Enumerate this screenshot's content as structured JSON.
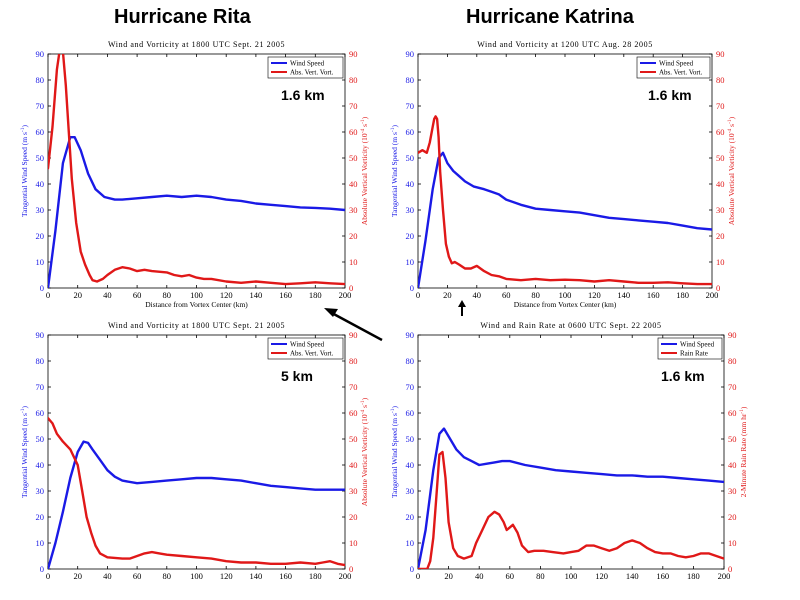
{
  "headings": {
    "left": "Hurricane Rita",
    "right": "Hurricane Katrina"
  },
  "colors": {
    "blue": "#1a1ae6",
    "red": "#e01818",
    "axis": "#000000"
  },
  "chart_data": [
    {
      "id": "rita-1p6",
      "type": "line",
      "title": "Wind and Vorticity at 1800 UTC Sept. 21 2005",
      "xlabel": "Distance from Vortex Center (km)",
      "ylabel": "Tangential Wind Speed (m s",
      "ylabel_sup": "-1",
      "y2label": "Absolute Vertical Vorticity (10",
      "y2label_sup": "-4",
      "y2label_tail": " s",
      "y2label_sup2": "-1",
      "y2label_end": ")",
      "xlim": [
        0,
        200
      ],
      "ylim": [
        0,
        90
      ],
      "y2lim": [
        0,
        90
      ],
      "xticks": [
        0,
        20,
        40,
        60,
        80,
        100,
        120,
        140,
        160,
        180,
        200
      ],
      "yticks": [
        0,
        10,
        20,
        30,
        40,
        50,
        60,
        70,
        80,
        90
      ],
      "annotation": "1.6 km",
      "legend": [
        "Wind Speed",
        "Abs. Vert. Vort."
      ],
      "series": [
        {
          "name": "Wind Speed",
          "axis": "left",
          "color": "#1a1ae6",
          "x": [
            0,
            5,
            10,
            15,
            18,
            22,
            27,
            32,
            38,
            45,
            50,
            60,
            70,
            80,
            90,
            100,
            110,
            120,
            130,
            140,
            150,
            160,
            170,
            180,
            190,
            200
          ],
          "y": [
            0,
            22,
            48,
            58,
            58,
            53,
            44,
            38,
            35,
            34,
            34,
            34.5,
            35,
            35.5,
            35,
            35.5,
            35,
            34,
            33.5,
            32.5,
            32,
            31.5,
            31,
            30.8,
            30.5,
            30
          ]
        },
        {
          "name": "Abs. Vert. Vort.",
          "axis": "right",
          "color": "#e01818",
          "x": [
            0,
            3,
            6,
            8,
            10,
            12,
            14,
            16,
            19,
            22,
            25,
            28,
            30,
            33,
            37,
            40,
            45,
            50,
            55,
            60,
            65,
            70,
            80,
            85,
            90,
            95,
            100,
            105,
            110,
            120,
            130,
            140,
            150,
            160,
            170,
            180,
            190,
            200
          ],
          "y": [
            46,
            62,
            84,
            92,
            91,
            78,
            60,
            42,
            25,
            14,
            9,
            5,
            3,
            2.5,
            3.5,
            5,
            7,
            8,
            7.5,
            6.5,
            7,
            6.5,
            6,
            5,
            4.5,
            5,
            4,
            3.5,
            3.5,
            2.5,
            2,
            2.5,
            2,
            1.5,
            1.8,
            2.2,
            1.8,
            1.5
          ]
        }
      ]
    },
    {
      "id": "katrina-1p6",
      "type": "line",
      "title": "Wind and Vorticity at 1200 UTC Aug. 28 2005",
      "xlabel": "Distance from Vortex Center (km)",
      "ylabel": "Tangential Wind Speed (m s",
      "ylabel_sup": "-1",
      "y2label": "Absolute Vertical Vorticity (10",
      "y2label_sup": "-4",
      "y2label_tail": " s",
      "y2label_sup2": "-1",
      "y2label_end": ")",
      "xlim": [
        0,
        200
      ],
      "ylim": [
        0,
        90
      ],
      "y2lim": [
        0,
        90
      ],
      "xticks": [
        0,
        20,
        40,
        60,
        80,
        100,
        120,
        140,
        160,
        180,
        200
      ],
      "yticks": [
        0,
        10,
        20,
        30,
        40,
        50,
        60,
        70,
        80,
        90
      ],
      "annotation": "1.6 km",
      "legend": [
        "Wind Speed",
        "Abs. Vert. Vort."
      ],
      "series": [
        {
          "name": "Wind Speed",
          "axis": "left",
          "color": "#1a1ae6",
          "x": [
            0,
            5,
            10,
            14,
            17,
            20,
            24,
            28,
            32,
            38,
            45,
            50,
            55,
            60,
            70,
            80,
            90,
            100,
            110,
            120,
            130,
            140,
            150,
            160,
            170,
            180,
            190,
            200
          ],
          "y": [
            0,
            18,
            38,
            50,
            52,
            48,
            45,
            43,
            41,
            39,
            38,
            37,
            36,
            34,
            32,
            30.5,
            30,
            29.5,
            29,
            28,
            27,
            26.5,
            26,
            25.5,
            25,
            24,
            23,
            22.5
          ]
        },
        {
          "name": "Abs. Vert. Vort.",
          "axis": "right",
          "color": "#e01818",
          "x": [
            0,
            3,
            6,
            8,
            10,
            11,
            12,
            13,
            14,
            15,
            17,
            19,
            21,
            23,
            25,
            28,
            32,
            36,
            40,
            45,
            50,
            55,
            60,
            70,
            80,
            90,
            100,
            110,
            120,
            130,
            140,
            150,
            160,
            170,
            180,
            190,
            200
          ],
          "y": [
            52,
            53,
            52,
            56,
            62,
            65,
            66,
            65,
            58,
            45,
            30,
            17,
            12,
            9.5,
            10,
            9,
            7.5,
            7.5,
            8.5,
            6.5,
            5,
            4.5,
            3.5,
            3,
            3.5,
            3,
            3.2,
            3,
            2.5,
            3,
            2.5,
            2,
            2,
            2.2,
            1.8,
            1.5,
            1.5
          ]
        }
      ]
    },
    {
      "id": "rita-5",
      "type": "line",
      "title": "Wind and Vorticity at 1800 UTC Sept. 21 2005",
      "xlabel": "",
      "ylabel": "Tangential Wind Speed (m s",
      "ylabel_sup": "-1",
      "y2label": "Absolute Vertical Vorticity (10",
      "y2label_sup": "-4",
      "y2label_tail": " s",
      "y2label_sup2": "-1",
      "y2label_end": ")",
      "xlim": [
        0,
        200
      ],
      "ylim": [
        0,
        90
      ],
      "y2lim": [
        0,
        90
      ],
      "xticks": [
        0,
        20,
        40,
        60,
        80,
        100,
        120,
        140,
        160,
        180,
        200
      ],
      "yticks": [
        0,
        10,
        20,
        30,
        40,
        50,
        60,
        70,
        80,
        90
      ],
      "annotation": "5 km",
      "legend": [
        "Wind Speed",
        "Abs. Vert. Vort."
      ],
      "series": [
        {
          "name": "Wind Speed",
          "axis": "left",
          "color": "#1a1ae6",
          "x": [
            0,
            5,
            10,
            15,
            20,
            24,
            27,
            30,
            35,
            40,
            45,
            50,
            60,
            70,
            80,
            90,
            100,
            110,
            120,
            130,
            140,
            150,
            160,
            170,
            180,
            190,
            200
          ],
          "y": [
            0,
            10,
            22,
            35,
            45,
            49,
            48.5,
            46,
            42,
            38,
            35.5,
            34,
            33,
            33.5,
            34,
            34.5,
            35,
            35,
            34.5,
            34,
            33,
            32,
            31.5,
            31,
            30.5,
            30.5,
            30.5
          ]
        },
        {
          "name": "Abs. Vert. Vort.",
          "axis": "right",
          "color": "#e01818",
          "x": [
            0,
            3,
            6,
            10,
            15,
            20,
            23,
            26,
            29,
            32,
            35,
            40,
            50,
            55,
            60,
            65,
            70,
            75,
            80,
            90,
            100,
            110,
            120,
            130,
            140,
            150,
            160,
            170,
            180,
            185,
            190,
            195,
            200
          ],
          "y": [
            58,
            56,
            52,
            49,
            46,
            40,
            30,
            20,
            14,
            9,
            6,
            4.5,
            4,
            4,
            5,
            6,
            6.5,
            6,
            5.5,
            5,
            4.5,
            4,
            3,
            2.5,
            2.5,
            2,
            2,
            2.5,
            2,
            2.5,
            3,
            2,
            1.5
          ]
        }
      ]
    },
    {
      "id": "katrina-rain",
      "type": "line",
      "title": "Wind and Rain Rate at 0600 UTC Sept. 22 2005",
      "xlabel": "",
      "ylabel": "Tangential Wind Speed (m s",
      "ylabel_sup": "-1",
      "y2label": "2-Minute Rain Rate (mm hr",
      "y2label_sup": "-1",
      "y2label_tail": "",
      "y2label_sup2": "",
      "y2label_end": ")",
      "xlim": [
        0,
        200
      ],
      "ylim": [
        0,
        90
      ],
      "y2lim": [
        0,
        90
      ],
      "xticks": [
        0,
        20,
        40,
        60,
        80,
        100,
        120,
        140,
        160,
        180,
        200
      ],
      "yticks": [
        0,
        10,
        20,
        30,
        40,
        50,
        60,
        70,
        80,
        90
      ],
      "annotation": "1.6 km",
      "legend": [
        "Wind Speed",
        "Rain Rate"
      ],
      "series": [
        {
          "name": "Wind Speed",
          "axis": "left",
          "color": "#1a1ae6",
          "x": [
            0,
            5,
            10,
            14,
            17,
            20,
            25,
            30,
            35,
            40,
            45,
            50,
            55,
            60,
            70,
            80,
            90,
            100,
            110,
            120,
            130,
            140,
            150,
            160,
            170,
            180,
            190,
            200
          ],
          "y": [
            0,
            15,
            38,
            52,
            54,
            51,
            46,
            43,
            41.5,
            40,
            40.5,
            41,
            41.5,
            41.5,
            40,
            39,
            38,
            37.5,
            37,
            36.5,
            36,
            36,
            35.5,
            35.5,
            35,
            34.5,
            34,
            33.5
          ]
        },
        {
          "name": "Rain Rate",
          "axis": "right",
          "color": "#e01818",
          "x": [
            0,
            3,
            6,
            8,
            10,
            12,
            14,
            16,
            18,
            20,
            23,
            26,
            30,
            35,
            38,
            42,
            46,
            50,
            53,
            56,
            58,
            60,
            62,
            65,
            68,
            72,
            76,
            82,
            88,
            95,
            100,
            105,
            110,
            115,
            120,
            125,
            130,
            135,
            140,
            145,
            150,
            155,
            160,
            165,
            170,
            175,
            180,
            185,
            190,
            195,
            200
          ],
          "y": [
            0,
            0,
            0,
            3,
            12,
            28,
            44,
            45,
            35,
            18,
            8,
            5,
            4,
            5,
            10,
            15,
            20,
            22,
            21,
            18,
            15,
            16,
            17,
            14,
            9,
            6.5,
            7,
            7,
            6.5,
            6,
            6.5,
            7,
            9,
            9,
            8,
            7,
            8,
            10,
            11,
            10,
            8,
            6.5,
            6,
            6,
            5,
            4.5,
            5,
            6,
            6,
            5,
            4
          ]
        }
      ]
    }
  ]
}
